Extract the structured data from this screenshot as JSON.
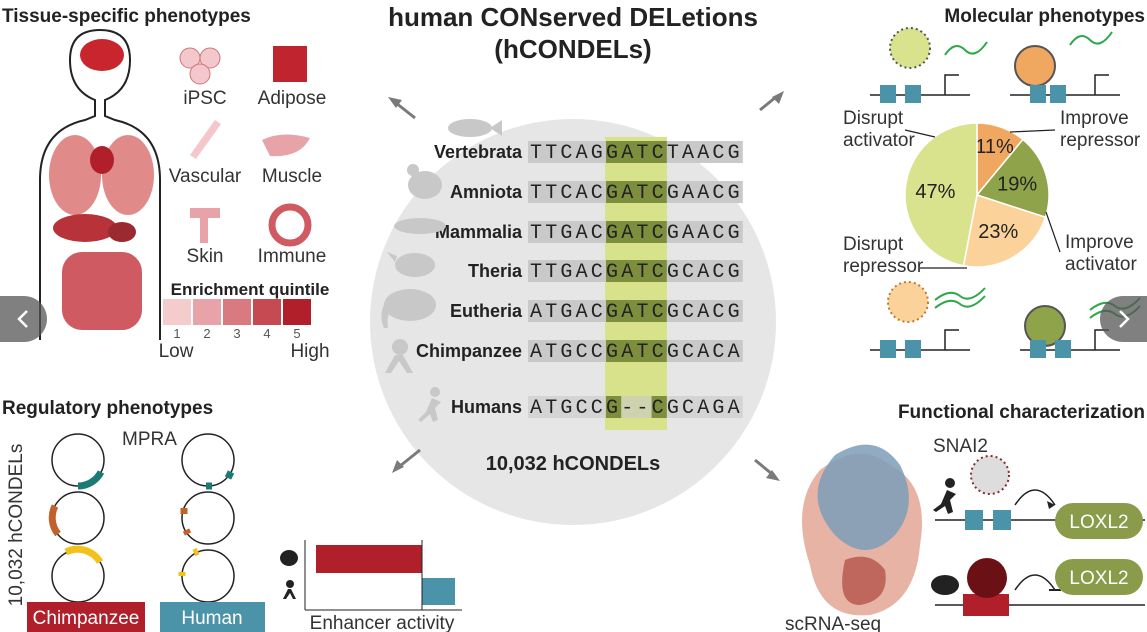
{
  "title": [
    "human CONserved DELetions",
    "(hCONDELs)"
  ],
  "center": {
    "rows": [
      {
        "species": "Vertebrata",
        "sequence": "TTCAGGATCTAACG"
      },
      {
        "species": "Amniota",
        "sequence": "TTCACGATCGAACG"
      },
      {
        "species": "Mammalia",
        "sequence": "TTGACGATCGAACG"
      },
      {
        "species": "Theria",
        "sequence": "TTGACGATCGCACG"
      },
      {
        "species": "Eutheria",
        "sequence": "ATGACGATCGCACG"
      },
      {
        "species": "Chimpanzee",
        "sequence": "ATGCCGATCGCACA"
      },
      {
        "species": "Humans",
        "sequence": "ATGCCG--CGCAGA"
      }
    ],
    "count": "10,032 hCONDELs"
  },
  "tissue": {
    "title": "Tissue-specific phenotypes",
    "tissues": [
      "iPSC",
      "Adipose",
      "Vascular",
      "Muscle",
      "Skin",
      "Immune"
    ],
    "legend": {
      "title": "Enrichment quintile",
      "levels": [
        "1",
        "2",
        "3",
        "4",
        "5"
      ],
      "low": "Low",
      "high": "High"
    }
  },
  "regulatory": {
    "title": "Regulatory phenotypes",
    "axis": "10,032 hCONDELs",
    "assay": "MPRA",
    "groups": [
      "Chimpanzee",
      "Human"
    ],
    "xlabel": "Enhancer activity"
  },
  "molecular": {
    "title": "Molecular phenotypes",
    "pie": {
      "values": [
        11,
        19,
        23,
        47
      ],
      "value_labels": [
        "11%",
        "19%",
        "23%",
        "47%"
      ],
      "colors": [
        "#f0a860",
        "#8fa34a",
        "#fbd39a",
        "#d9e38e"
      ]
    },
    "labels": [
      [
        "Improve",
        "repressor"
      ],
      [
        "Improve",
        "activator"
      ],
      [
        "Disrupt",
        "repressor"
      ],
      [
        "Disrupt",
        "activator"
      ]
    ]
  },
  "functional": {
    "title": "Functional characterization",
    "tf": "SNAI2",
    "gene": "LOXL2",
    "method": "scRNA-seq"
  }
}
